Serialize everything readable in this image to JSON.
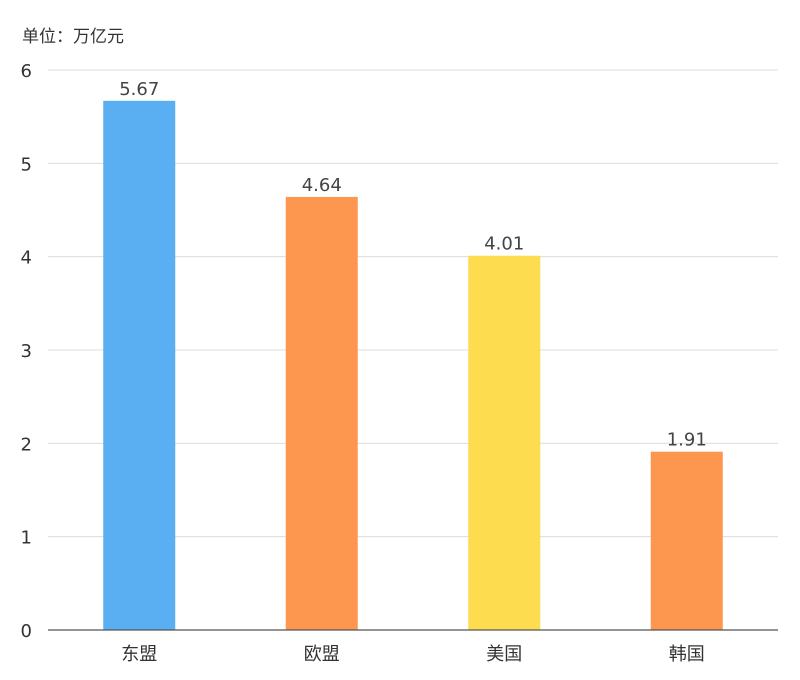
{
  "chart_data": {
    "type": "bar",
    "unit_label": "单位：万亿元",
    "categories": [
      "东盟",
      "欧盟",
      "美国",
      "韩国"
    ],
    "values": [
      5.67,
      4.64,
      4.01,
      1.91
    ],
    "value_labels": [
      "5.67",
      "4.64",
      "4.01",
      "1.91"
    ],
    "colors": [
      "#5aaef2",
      "#fd964f",
      "#fedc50",
      "#fd964f"
    ],
    "ylim": [
      0,
      6
    ],
    "yticks": [
      "0",
      "1",
      "2",
      "3",
      "4",
      "5",
      "6"
    ],
    "grid": true
  }
}
